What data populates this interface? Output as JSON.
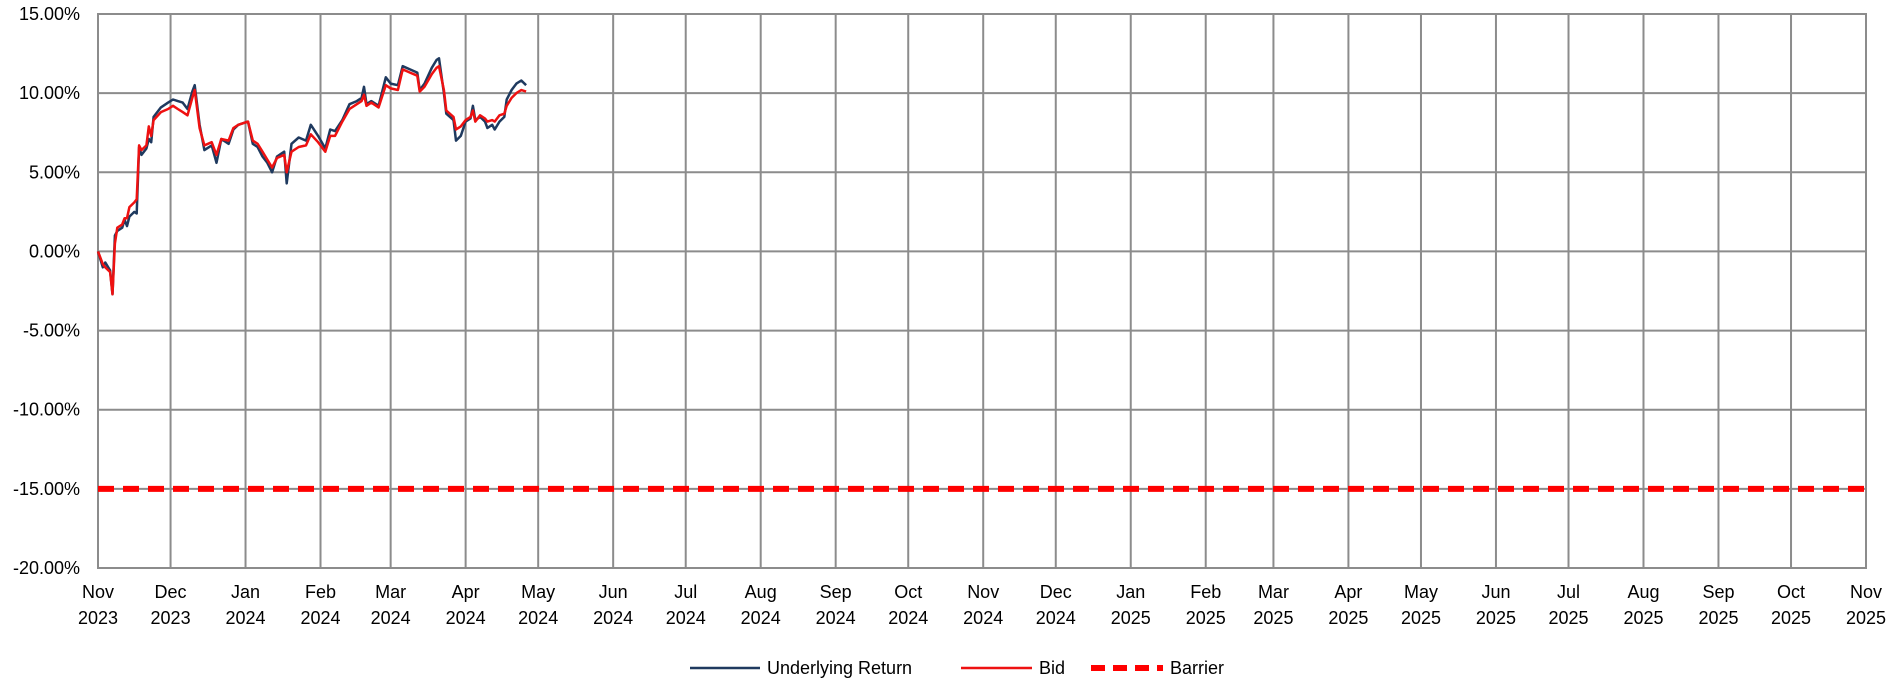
{
  "chart_data": {
    "type": "line",
    "title": "",
    "xlabel": "",
    "ylabel": "",
    "grid": true,
    "legend_position": "bottom",
    "ylim": [
      -0.2,
      0.15
    ],
    "xlim": [
      "2023-11-01",
      "2025-11-01"
    ],
    "y_ticks": [
      {
        "value": 0.15,
        "label": "15.00%"
      },
      {
        "value": 0.1,
        "label": "10.00%"
      },
      {
        "value": 0.05,
        "label": "5.00%"
      },
      {
        "value": 0.0,
        "label": "0.00%"
      },
      {
        "value": -0.05,
        "label": "-5.00%"
      },
      {
        "value": -0.1,
        "label": "-10.00%"
      },
      {
        "value": -0.15,
        "label": "-15.00%"
      },
      {
        "value": -0.2,
        "label": "-20.00%"
      }
    ],
    "x_ticks": [
      {
        "date": "2023-11-01",
        "month": "Nov",
        "year": "2023"
      },
      {
        "date": "2023-12-01",
        "month": "Dec",
        "year": "2023"
      },
      {
        "date": "2024-01-01",
        "month": "Jan",
        "year": "2024"
      },
      {
        "date": "2024-02-01",
        "month": "Feb",
        "year": "2024"
      },
      {
        "date": "2024-03-01",
        "month": "Mar",
        "year": "2024"
      },
      {
        "date": "2024-04-01",
        "month": "Apr",
        "year": "2024"
      },
      {
        "date": "2024-05-01",
        "month": "May",
        "year": "2024"
      },
      {
        "date": "2024-06-01",
        "month": "Jun",
        "year": "2024"
      },
      {
        "date": "2024-07-01",
        "month": "Jul",
        "year": "2024"
      },
      {
        "date": "2024-08-01",
        "month": "Aug",
        "year": "2024"
      },
      {
        "date": "2024-09-01",
        "month": "Sep",
        "year": "2024"
      },
      {
        "date": "2024-10-01",
        "month": "Oct",
        "year": "2024"
      },
      {
        "date": "2024-11-01",
        "month": "Nov",
        "year": "2024"
      },
      {
        "date": "2024-12-01",
        "month": "Dec",
        "year": "2024"
      },
      {
        "date": "2025-01-01",
        "month": "Jan",
        "year": "2025"
      },
      {
        "date": "2025-02-01",
        "month": "Feb",
        "year": "2025"
      },
      {
        "date": "2025-03-01",
        "month": "Mar",
        "year": "2025"
      },
      {
        "date": "2025-04-01",
        "month": "Apr",
        "year": "2025"
      },
      {
        "date": "2025-05-01",
        "month": "May",
        "year": "2025"
      },
      {
        "date": "2025-06-01",
        "month": "Jun",
        "year": "2025"
      },
      {
        "date": "2025-07-01",
        "month": "Jul",
        "year": "2025"
      },
      {
        "date": "2025-08-01",
        "month": "Aug",
        "year": "2025"
      },
      {
        "date": "2025-09-01",
        "month": "Sep",
        "year": "2025"
      },
      {
        "date": "2025-10-01",
        "month": "Oct",
        "year": "2025"
      },
      {
        "date": "2025-11-01",
        "month": "Nov",
        "year": "2025"
      }
    ],
    "series": [
      {
        "name": "Underlying Return",
        "color": "#1f3a5f",
        "style": "solid",
        "points": [
          [
            "2023-11-01",
            0.0
          ],
          [
            "2023-11-03",
            -0.01
          ],
          [
            "2023-11-04",
            -0.007
          ],
          [
            "2023-11-06",
            -0.012
          ],
          [
            "2023-11-07",
            -0.027
          ],
          [
            "2023-11-08",
            0.01
          ],
          [
            "2023-11-09",
            0.013
          ],
          [
            "2023-11-11",
            0.015
          ],
          [
            "2023-11-12",
            0.02
          ],
          [
            "2023-11-13",
            0.016
          ],
          [
            "2023-11-14",
            0.022
          ],
          [
            "2023-11-16",
            0.025
          ],
          [
            "2023-11-17",
            0.024
          ],
          [
            "2023-11-18",
            0.066
          ],
          [
            "2023-11-19",
            0.061
          ],
          [
            "2023-11-21",
            0.065
          ],
          [
            "2023-11-22",
            0.071
          ],
          [
            "2023-11-23",
            0.069
          ],
          [
            "2023-11-24",
            0.085
          ],
          [
            "2023-11-27",
            0.091
          ],
          [
            "2023-11-30",
            0.094
          ],
          [
            "2023-12-02",
            0.096
          ],
          [
            "2023-12-04",
            0.095
          ],
          [
            "2023-12-06",
            0.094
          ],
          [
            "2023-12-08",
            0.09
          ],
          [
            "2023-12-10",
            0.101
          ],
          [
            "2023-12-11",
            0.105
          ],
          [
            "2023-12-13",
            0.08
          ],
          [
            "2023-12-15",
            0.064
          ],
          [
            "2023-12-18",
            0.067
          ],
          [
            "2023-12-20",
            0.056
          ],
          [
            "2023-12-22",
            0.071
          ],
          [
            "2023-12-25",
            0.068
          ],
          [
            "2023-12-27",
            0.077
          ],
          [
            "2023-12-29",
            0.08
          ],
          [
            "2024-01-02",
            0.082
          ],
          [
            "2024-01-04",
            0.068
          ],
          [
            "2024-01-06",
            0.066
          ],
          [
            "2024-01-08",
            0.06
          ],
          [
            "2024-01-10",
            0.056
          ],
          [
            "2024-01-12",
            0.05
          ],
          [
            "2024-01-14",
            0.06
          ],
          [
            "2024-01-17",
            0.063
          ],
          [
            "2024-01-18",
            0.043
          ],
          [
            "2024-01-20",
            0.068
          ],
          [
            "2024-01-23",
            0.072
          ],
          [
            "2024-01-26",
            0.07
          ],
          [
            "2024-01-28",
            0.08
          ],
          [
            "2024-01-31",
            0.073
          ],
          [
            "2024-02-03",
            0.065
          ],
          [
            "2024-02-05",
            0.077
          ],
          [
            "2024-02-07",
            0.076
          ],
          [
            "2024-02-10",
            0.083
          ],
          [
            "2024-02-13",
            0.093
          ],
          [
            "2024-02-16",
            0.095
          ],
          [
            "2024-02-18",
            0.097
          ],
          [
            "2024-02-19",
            0.104
          ],
          [
            "2024-02-20",
            0.093
          ],
          [
            "2024-02-22",
            0.095
          ],
          [
            "2024-02-25",
            0.092
          ],
          [
            "2024-02-28",
            0.11
          ],
          [
            "2024-03-01",
            0.106
          ],
          [
            "2024-03-04",
            0.105
          ],
          [
            "2024-03-06",
            0.117
          ],
          [
            "2024-03-09",
            0.115
          ],
          [
            "2024-03-12",
            0.113
          ],
          [
            "2024-03-13",
            0.102
          ],
          [
            "2024-03-15",
            0.106
          ],
          [
            "2024-03-18",
            0.116
          ],
          [
            "2024-03-20",
            0.121
          ],
          [
            "2024-03-21",
            0.122
          ],
          [
            "2024-03-23",
            0.1
          ],
          [
            "2024-03-24",
            0.087
          ],
          [
            "2024-03-27",
            0.083
          ],
          [
            "2024-03-28",
            0.07
          ],
          [
            "2024-03-30",
            0.073
          ],
          [
            "2024-04-01",
            0.082
          ],
          [
            "2024-04-03",
            0.084
          ],
          [
            "2024-04-04",
            0.092
          ],
          [
            "2024-04-05",
            0.083
          ],
          [
            "2024-04-07",
            0.085
          ],
          [
            "2024-04-09",
            0.082
          ],
          [
            "2024-04-10",
            0.078
          ],
          [
            "2024-04-12",
            0.08
          ],
          [
            "2024-04-13",
            0.077
          ],
          [
            "2024-04-15",
            0.082
          ],
          [
            "2024-04-17",
            0.085
          ],
          [
            "2024-04-18",
            0.096
          ],
          [
            "2024-04-20",
            0.102
          ],
          [
            "2024-04-22",
            0.106
          ],
          [
            "2024-04-24",
            0.108
          ],
          [
            "2024-04-26",
            0.105
          ]
        ]
      },
      {
        "name": "Bid",
        "color": "#ee1111",
        "style": "solid",
        "points": [
          [
            "2023-11-01",
            0.0
          ],
          [
            "2023-11-03",
            -0.008
          ],
          [
            "2023-11-04",
            -0.01
          ],
          [
            "2023-11-06",
            -0.013
          ],
          [
            "2023-11-07",
            -0.027
          ],
          [
            "2023-11-08",
            0.005
          ],
          [
            "2023-11-09",
            0.015
          ],
          [
            "2023-11-11",
            0.017
          ],
          [
            "2023-11-12",
            0.021
          ],
          [
            "2023-11-13",
            0.021
          ],
          [
            "2023-11-14",
            0.028
          ],
          [
            "2023-11-16",
            0.031
          ],
          [
            "2023-11-17",
            0.033
          ],
          [
            "2023-11-18",
            0.067
          ],
          [
            "2023-11-19",
            0.064
          ],
          [
            "2023-11-21",
            0.067
          ],
          [
            "2023-11-22",
            0.079
          ],
          [
            "2023-11-23",
            0.073
          ],
          [
            "2023-11-24",
            0.083
          ],
          [
            "2023-11-27",
            0.088
          ],
          [
            "2023-11-30",
            0.09
          ],
          [
            "2023-12-02",
            0.092
          ],
          [
            "2023-12-04",
            0.09
          ],
          [
            "2023-12-06",
            0.088
          ],
          [
            "2023-12-08",
            0.086
          ],
          [
            "2023-12-10",
            0.097
          ],
          [
            "2023-12-11",
            0.102
          ],
          [
            "2023-12-13",
            0.078
          ],
          [
            "2023-12-15",
            0.067
          ],
          [
            "2023-12-18",
            0.069
          ],
          [
            "2023-12-20",
            0.061
          ],
          [
            "2023-12-22",
            0.071
          ],
          [
            "2023-12-25",
            0.07
          ],
          [
            "2023-12-27",
            0.078
          ],
          [
            "2023-12-29",
            0.08
          ],
          [
            "2024-01-02",
            0.082
          ],
          [
            "2024-01-04",
            0.07
          ],
          [
            "2024-01-06",
            0.068
          ],
          [
            "2024-01-08",
            0.063
          ],
          [
            "2024-01-10",
            0.058
          ],
          [
            "2024-01-12",
            0.053
          ],
          [
            "2024-01-14",
            0.059
          ],
          [
            "2024-01-17",
            0.061
          ],
          [
            "2024-01-18",
            0.05
          ],
          [
            "2024-01-20",
            0.063
          ],
          [
            "2024-01-23",
            0.066
          ],
          [
            "2024-01-26",
            0.067
          ],
          [
            "2024-01-28",
            0.074
          ],
          [
            "2024-01-31",
            0.069
          ],
          [
            "2024-02-03",
            0.063
          ],
          [
            "2024-02-05",
            0.073
          ],
          [
            "2024-02-07",
            0.073
          ],
          [
            "2024-02-10",
            0.082
          ],
          [
            "2024-02-13",
            0.09
          ],
          [
            "2024-02-16",
            0.093
          ],
          [
            "2024-02-18",
            0.095
          ],
          [
            "2024-02-19",
            0.099
          ],
          [
            "2024-02-20",
            0.092
          ],
          [
            "2024-02-22",
            0.094
          ],
          [
            "2024-02-25",
            0.091
          ],
          [
            "2024-02-28",
            0.105
          ],
          [
            "2024-03-01",
            0.103
          ],
          [
            "2024-03-04",
            0.102
          ],
          [
            "2024-03-06",
            0.115
          ],
          [
            "2024-03-09",
            0.113
          ],
          [
            "2024-03-12",
            0.111
          ],
          [
            "2024-03-13",
            0.101
          ],
          [
            "2024-03-15",
            0.104
          ],
          [
            "2024-03-18",
            0.112
          ],
          [
            "2024-03-20",
            0.116
          ],
          [
            "2024-03-21",
            0.117
          ],
          [
            "2024-03-23",
            0.102
          ],
          [
            "2024-03-24",
            0.089
          ],
          [
            "2024-03-27",
            0.085
          ],
          [
            "2024-03-28",
            0.077
          ],
          [
            "2024-03-30",
            0.079
          ],
          [
            "2024-04-01",
            0.083
          ],
          [
            "2024-04-03",
            0.085
          ],
          [
            "2024-04-04",
            0.089
          ],
          [
            "2024-04-05",
            0.082
          ],
          [
            "2024-04-07",
            0.086
          ],
          [
            "2024-04-09",
            0.084
          ],
          [
            "2024-04-10",
            0.082
          ],
          [
            "2024-04-12",
            0.083
          ],
          [
            "2024-04-13",
            0.082
          ],
          [
            "2024-04-15",
            0.086
          ],
          [
            "2024-04-17",
            0.087
          ],
          [
            "2024-04-18",
            0.092
          ],
          [
            "2024-04-20",
            0.097
          ],
          [
            "2024-04-22",
            0.1
          ],
          [
            "2024-04-24",
            0.102
          ],
          [
            "2024-04-26",
            0.101
          ]
        ]
      },
      {
        "name": "Barrier",
        "color": "#ff0000",
        "style": "dashed",
        "points": [
          [
            "2023-11-01",
            -0.15
          ],
          [
            "2025-11-01",
            -0.15
          ]
        ]
      }
    ]
  }
}
